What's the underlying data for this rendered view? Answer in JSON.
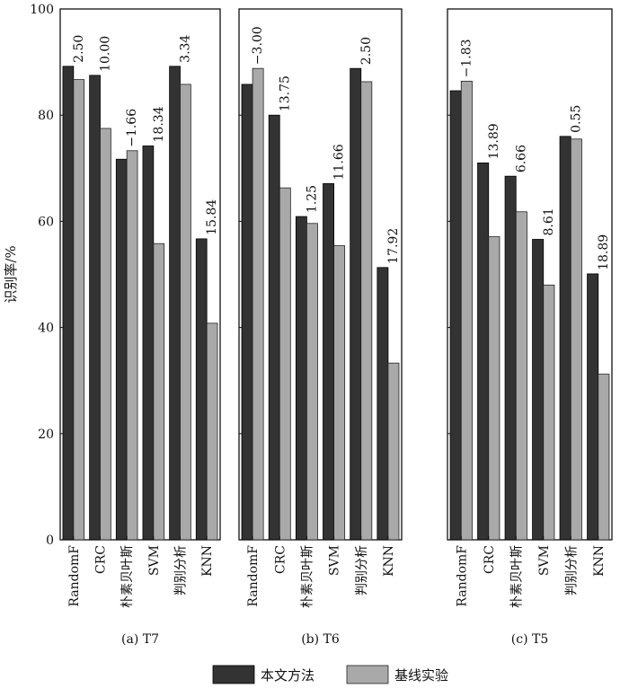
{
  "chart_data": {
    "type": "bar",
    "ylabel": "识别率/%",
    "ylim": [
      0,
      100
    ],
    "yticks": [
      0,
      20,
      40,
      60,
      80,
      100
    ],
    "categories": [
      "RandomF",
      "CRC",
      "朴素贝叶斯",
      "SVM",
      "判别分析",
      "KNN"
    ],
    "legend": [
      "本文方法",
      "基线实验"
    ],
    "colors": {
      "method": "#333333",
      "baseline": "#a9a9a9"
    },
    "panels": [
      {
        "caption": "(a) T7",
        "method": [
          89.2,
          87.5,
          71.7,
          74.2,
          89.2,
          56.7
        ],
        "baseline": [
          86.7,
          77.5,
          73.3,
          55.8,
          85.8,
          40.8
        ],
        "diff_labels": [
          "2.50",
          "10.00",
          "−1.66",
          "18.34",
          "3.34",
          "15.84"
        ]
      },
      {
        "caption": "(b) T6",
        "method": [
          85.8,
          80.0,
          60.9,
          67.1,
          88.8,
          51.3
        ],
        "baseline": [
          88.8,
          66.3,
          59.6,
          55.4,
          86.3,
          33.3
        ],
        "diff_labels": [
          "−3.00",
          "13.75",
          "1.25",
          "11.66",
          "2.50",
          "17.92"
        ]
      },
      {
        "caption": "(c) T5",
        "method": [
          84.6,
          71.0,
          68.5,
          56.6,
          76.0,
          50.1
        ],
        "baseline": [
          86.4,
          57.1,
          61.8,
          48.0,
          75.5,
          31.2
        ],
        "diff_labels": [
          "−1.83",
          "13.89",
          "6.66",
          "8.61",
          "0.55",
          "18.89"
        ]
      }
    ]
  }
}
